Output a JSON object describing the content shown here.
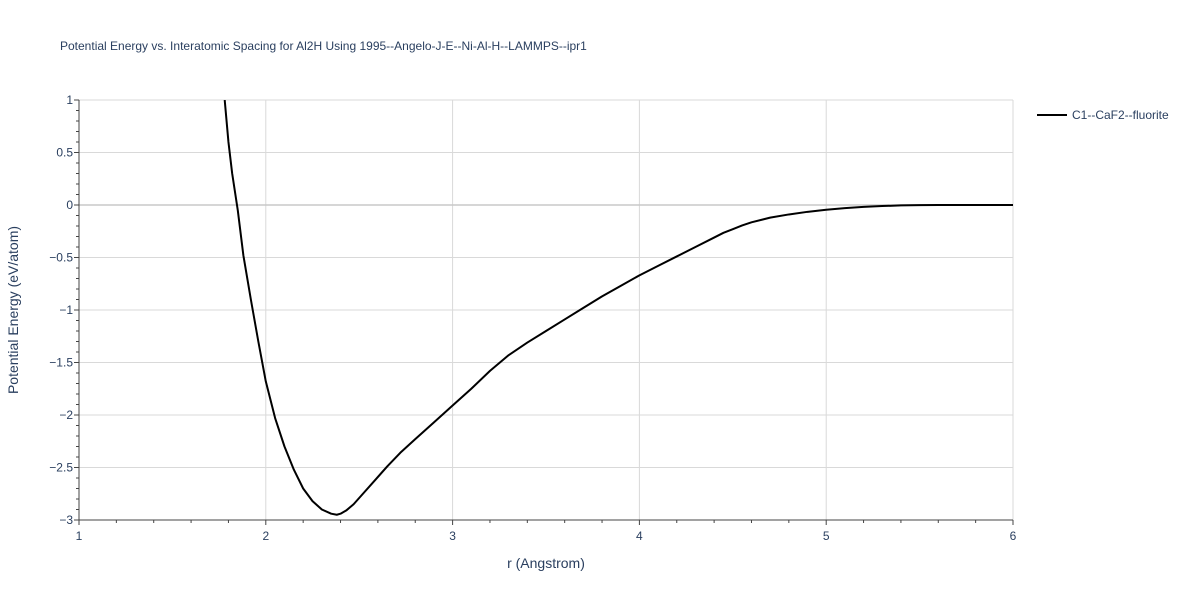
{
  "chart_data": {
    "type": "line",
    "title": "Potential Energy vs. Interatomic Spacing for Al2H Using 1995--Angelo-J-E--Ni-Al-H--LAMMPS--ipr1",
    "xlabel": "r (Angstrom)",
    "ylabel": "Potential Energy (eV/atom)",
    "xlim": [
      1,
      6
    ],
    "ylim": [
      -3,
      1
    ],
    "xticks": [
      1,
      2,
      3,
      4,
      5,
      6
    ],
    "xtick_labels": [
      "1",
      "2",
      "3",
      "4",
      "5",
      "6"
    ],
    "yticks": [
      1,
      0.5,
      0,
      -0.5,
      -1,
      -1.5,
      -2,
      -2.5,
      -3
    ],
    "ytick_labels": [
      "1",
      "0.5",
      "0",
      "−0.5",
      "−1",
      "−1.5",
      "−2",
      "−2.5",
      "−3"
    ],
    "grid": true,
    "legend_position": "top-right",
    "series": [
      {
        "name": "C1--CaF2--fluorite",
        "color": "#000000",
        "x": [
          1.78,
          1.8,
          1.82,
          1.85,
          1.88,
          1.92,
          1.96,
          2.0,
          2.05,
          2.1,
          2.15,
          2.2,
          2.25,
          2.3,
          2.35,
          2.38,
          2.4,
          2.43,
          2.47,
          2.52,
          2.58,
          2.65,
          2.72,
          2.8,
          2.9,
          3.0,
          3.1,
          3.2,
          3.3,
          3.4,
          3.5,
          3.6,
          3.7,
          3.8,
          3.9,
          4.0,
          4.1,
          4.2,
          4.3,
          4.4,
          4.45,
          4.5,
          4.55,
          4.6,
          4.7,
          4.8,
          4.9,
          5.0,
          5.1,
          5.2,
          5.3,
          5.4,
          5.5,
          5.6,
          5.7,
          5.8,
          5.9,
          6.0
        ],
        "y": [
          1.0,
          0.6,
          0.3,
          -0.05,
          -0.48,
          -0.9,
          -1.3,
          -1.68,
          -2.03,
          -2.3,
          -2.52,
          -2.7,
          -2.82,
          -2.9,
          -2.94,
          -2.95,
          -2.94,
          -2.91,
          -2.85,
          -2.75,
          -2.63,
          -2.49,
          -2.36,
          -2.23,
          -2.07,
          -1.91,
          -1.75,
          -1.58,
          -1.43,
          -1.31,
          -1.2,
          -1.09,
          -0.98,
          -0.87,
          -0.77,
          -0.67,
          -0.58,
          -0.49,
          -0.4,
          -0.31,
          -0.265,
          -0.23,
          -0.195,
          -0.165,
          -0.12,
          -0.09,
          -0.065,
          -0.045,
          -0.03,
          -0.018,
          -0.01,
          -0.004,
          -0.001,
          0.0,
          0.0,
          0.0,
          0.0,
          0.0
        ]
      }
    ]
  }
}
